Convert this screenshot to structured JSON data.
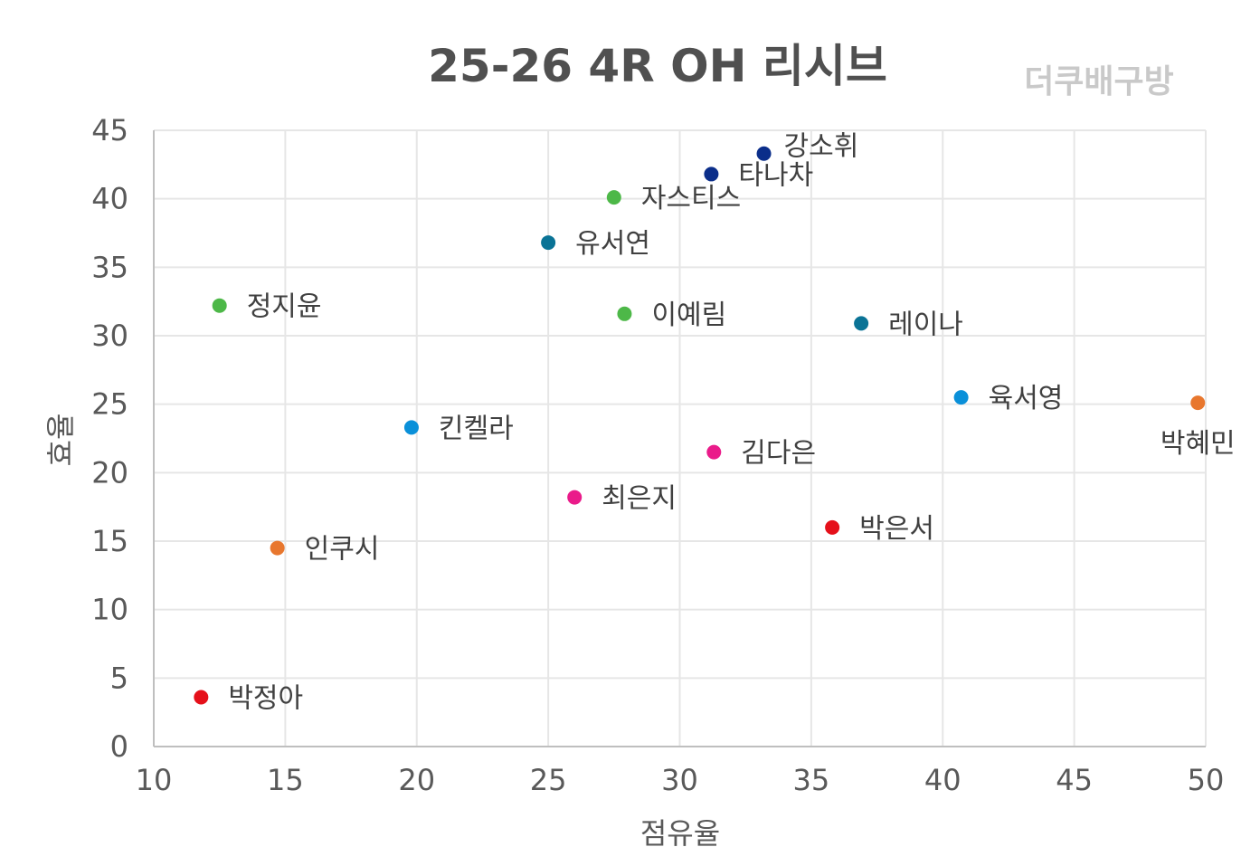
{
  "chart_data": {
    "type": "scatter",
    "title": "25-26 4R OH 리시브",
    "watermark": "더쿠배구방",
    "xlabel": "점유율",
    "ylabel": "효율",
    "xlim": [
      10,
      50
    ],
    "ylim": [
      0,
      45
    ],
    "xticks": [
      10,
      15,
      20,
      25,
      30,
      35,
      40,
      45,
      50
    ],
    "yticks": [
      0,
      5,
      10,
      15,
      20,
      25,
      30,
      35,
      40,
      45
    ],
    "grid": true,
    "points": [
      {
        "name": "강소휘",
        "x": 33.2,
        "y": 43.3,
        "color": "#0b2e8a",
        "label_pos": "right-up"
      },
      {
        "name": "타나차",
        "x": 31.2,
        "y": 41.8,
        "color": "#0b2e8a",
        "label_pos": "right"
      },
      {
        "name": "자스티스",
        "x": 27.5,
        "y": 40.1,
        "color": "#4db848",
        "label_pos": "right"
      },
      {
        "name": "유서연",
        "x": 25.0,
        "y": 36.8,
        "color": "#0a7396",
        "label_pos": "right"
      },
      {
        "name": "정지윤",
        "x": 12.5,
        "y": 32.2,
        "color": "#4db848",
        "label_pos": "right"
      },
      {
        "name": "이예림",
        "x": 27.9,
        "y": 31.6,
        "color": "#4db848",
        "label_pos": "right"
      },
      {
        "name": "레이나",
        "x": 36.9,
        "y": 30.9,
        "color": "#0a7396",
        "label_pos": "right"
      },
      {
        "name": "육서영",
        "x": 40.7,
        "y": 25.5,
        "color": "#0a90d9",
        "label_pos": "right"
      },
      {
        "name": "박혜민",
        "x": 49.7,
        "y": 25.1,
        "color": "#e8772e",
        "label_pos": "below"
      },
      {
        "name": "킨켈라",
        "x": 19.8,
        "y": 23.3,
        "color": "#0a90d9",
        "label_pos": "right"
      },
      {
        "name": "김다은",
        "x": 31.3,
        "y": 21.5,
        "color": "#ea1b8a",
        "label_pos": "right"
      },
      {
        "name": "최은지",
        "x": 26.0,
        "y": 18.2,
        "color": "#ea1b8a",
        "label_pos": "right"
      },
      {
        "name": "박은서",
        "x": 35.8,
        "y": 16.0,
        "color": "#e5101a",
        "label_pos": "right"
      },
      {
        "name": "인쿠시",
        "x": 14.7,
        "y": 14.5,
        "color": "#e8772e",
        "label_pos": "right"
      },
      {
        "name": "박정아",
        "x": 11.8,
        "y": 3.6,
        "color": "#e5101a",
        "label_pos": "right"
      }
    ]
  }
}
